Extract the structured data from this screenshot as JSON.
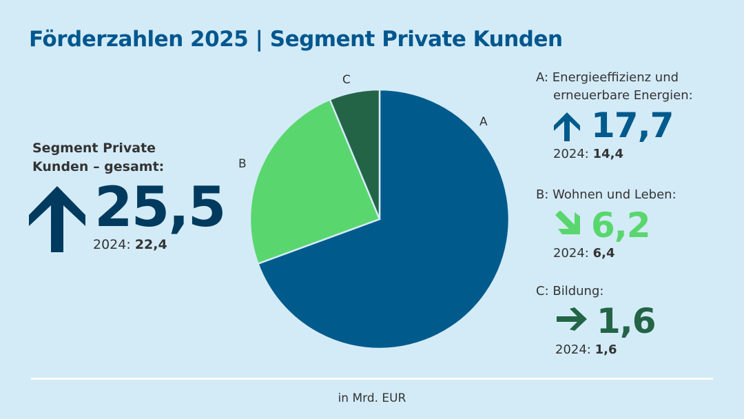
{
  "title": "Förderzahlen 2025 | Segment Private Kunden",
  "total": {
    "label_line1": "Segment Private",
    "label_line2": "Kunden – gesamt:",
    "value": "25,5",
    "trend_icon": "arrow-up-icon",
    "prev_label": "2024:",
    "prev_value": "22,4",
    "color": "#003a5e"
  },
  "unit": "in Mrd. EUR",
  "chart_data": {
    "type": "pie",
    "categories": [
      "A",
      "B",
      "C"
    ],
    "values": [
      17.7,
      6.2,
      1.6
    ],
    "colors": [
      "#005a8c",
      "#5ad66e",
      "#236446"
    ],
    "start": "12 o'clock",
    "direction": "clockwise"
  },
  "segments": [
    {
      "key": "A",
      "label_line1": "A: Energieeffizienz und",
      "label_line2": "erneuerbare Energien:",
      "value": "17,7",
      "trend_icon": "arrow-up-icon",
      "prev_label": "2024:",
      "prev_value": "14,4",
      "color": "#005a8c"
    },
    {
      "key": "B",
      "label_line1": "B: Wohnen und Leben:",
      "value": "6,2",
      "trend_icon": "arrow-down-right-icon",
      "prev_label": "2024:",
      "prev_value": "6,4",
      "color": "#5ad66e"
    },
    {
      "key": "C",
      "label_line1": "C: Bildung:",
      "value": "1,6",
      "trend_icon": "arrow-right-icon",
      "prev_label": "2024:",
      "prev_value": "1,6",
      "color": "#236446"
    }
  ]
}
